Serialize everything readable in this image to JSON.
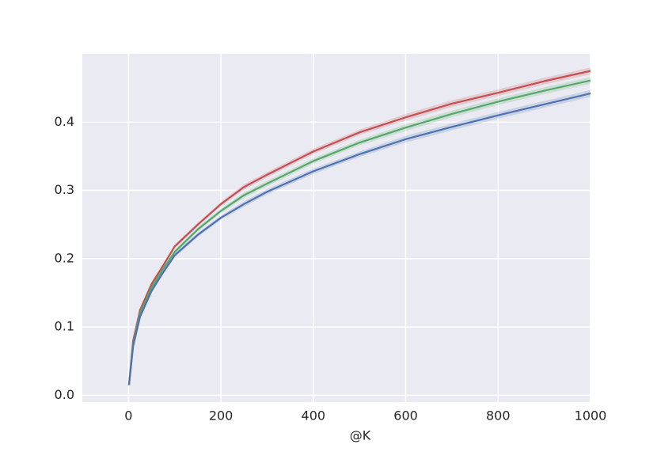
{
  "chart_data": {
    "type": "line",
    "xlabel": "@K",
    "x": [
      1,
      10,
      25,
      50,
      75,
      100,
      150,
      200,
      250,
      300,
      400,
      500,
      600,
      700,
      800,
      900,
      1000
    ],
    "series": [
      {
        "color": "#c44e52",
        "values": [
          0.015,
          0.08,
          0.125,
          0.163,
          0.19,
          0.218,
          0.25,
          0.28,
          0.305,
          0.323,
          0.357,
          0.385,
          0.407,
          0.427,
          0.443,
          0.46,
          0.475
        ],
        "upper": [
          0.015,
          0.082,
          0.127,
          0.166,
          0.193,
          0.221,
          0.253,
          0.283,
          0.309,
          0.327,
          0.361,
          0.389,
          0.412,
          0.432,
          0.448,
          0.465,
          0.48
        ],
        "lower": [
          0.015,
          0.078,
          0.123,
          0.16,
          0.187,
          0.215,
          0.247,
          0.277,
          0.301,
          0.319,
          0.353,
          0.381,
          0.402,
          0.422,
          0.438,
          0.455,
          0.47
        ]
      },
      {
        "color": "#55a868",
        "values": [
          0.015,
          0.075,
          0.12,
          0.158,
          0.185,
          0.21,
          0.243,
          0.27,
          0.293,
          0.31,
          0.343,
          0.37,
          0.392,
          0.412,
          0.43,
          0.446,
          0.461
        ],
        "upper": [
          0.015,
          0.077,
          0.122,
          0.161,
          0.188,
          0.213,
          0.246,
          0.273,
          0.297,
          0.314,
          0.347,
          0.374,
          0.397,
          0.417,
          0.435,
          0.451,
          0.466
        ],
        "lower": [
          0.015,
          0.073,
          0.118,
          0.155,
          0.182,
          0.207,
          0.24,
          0.267,
          0.289,
          0.306,
          0.339,
          0.366,
          0.387,
          0.407,
          0.425,
          0.441,
          0.456
        ]
      },
      {
        "color": "#4c72b0",
        "values": [
          0.015,
          0.072,
          0.115,
          0.153,
          0.18,
          0.205,
          0.235,
          0.26,
          0.28,
          0.298,
          0.328,
          0.353,
          0.375,
          0.393,
          0.41,
          0.426,
          0.442
        ],
        "upper": [
          0.015,
          0.074,
          0.117,
          0.156,
          0.183,
          0.208,
          0.238,
          0.263,
          0.284,
          0.302,
          0.332,
          0.357,
          0.38,
          0.398,
          0.415,
          0.431,
          0.447
        ],
        "lower": [
          0.015,
          0.07,
          0.113,
          0.15,
          0.177,
          0.202,
          0.232,
          0.257,
          0.276,
          0.294,
          0.324,
          0.349,
          0.37,
          0.388,
          0.405,
          0.421,
          0.437
        ]
      }
    ],
    "xlim": [
      -100,
      1000
    ],
    "xticks": [
      0,
      200,
      400,
      600,
      800,
      1000
    ],
    "ylim": [
      -0.01,
      0.5
    ],
    "yticks": [
      {
        "value": 0,
        "label": "0.0"
      },
      0.1,
      0.2,
      0.3,
      0.4
    ],
    "grid": true,
    "background": "#eaeaf2"
  }
}
